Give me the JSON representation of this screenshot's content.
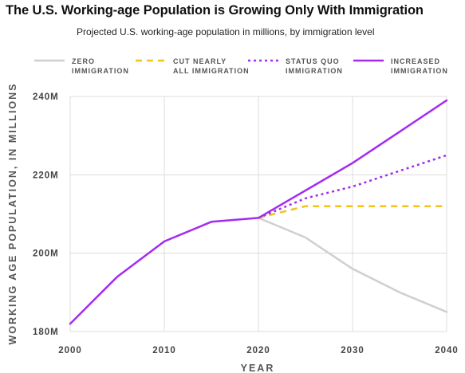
{
  "chart_data": {
    "type": "line",
    "title": "The U.S. Working-age Population is Growing Only With Immigration",
    "subtitle": "Projected U.S. working-age population in millions, by immigration level",
    "xlabel": "YEAR",
    "ylabel": "WORKING AGE POPULATION, IN MILLIONS",
    "xlim": [
      2000,
      2040
    ],
    "ylim": [
      180,
      240
    ],
    "x_ticks": [
      2000,
      2010,
      2020,
      2030,
      2040
    ],
    "x_tick_labels": [
      "2000",
      "2010",
      "2020",
      "2030",
      "2040"
    ],
    "y_ticks": [
      180,
      200,
      220,
      240
    ],
    "y_tick_labels": [
      "180M",
      "200M",
      "220M",
      "240M"
    ],
    "grid": true,
    "legend_position": "top",
    "series": [
      {
        "name": "INCREASED IMMIGRATION",
        "color": "#a32cf0",
        "style": "solid",
        "x": [
          2000,
          2005,
          2010,
          2015,
          2020,
          2025,
          2030,
          2035,
          2040
        ],
        "values": [
          182,
          194,
          203,
          208,
          209,
          216,
          223,
          231,
          239
        ]
      },
      {
        "name": "STATUS QUO IMMIGRATION",
        "color": "#a32cf0",
        "style": "dotted",
        "x": [
          2020,
          2025,
          2030,
          2035,
          2040
        ],
        "values": [
          209,
          214,
          217,
          221,
          225
        ]
      },
      {
        "name": "CUT NEARLY ALL IMMIGRATION",
        "color": "#f2c318",
        "style": "dashed",
        "x": [
          2020,
          2025,
          2030,
          2035,
          2040
        ],
        "values": [
          209,
          212,
          212,
          212,
          212
        ]
      },
      {
        "name": "ZERO IMMIGRATION",
        "color": "#cfcfcf",
        "style": "solid",
        "x": [
          2020,
          2025,
          2030,
          2035,
          2040
        ],
        "values": [
          209,
          204,
          196,
          190,
          185
        ]
      }
    ]
  },
  "legend": [
    {
      "label": "ZERO\nIMMIGRATION",
      "color": "#cfcfcf",
      "style": "solid"
    },
    {
      "label": "CUT NEARLY\nALL IMMIGRATION",
      "color": "#f2c318",
      "style": "dashed"
    },
    {
      "label": "STATUS QUO\nIMMIGRATION",
      "color": "#a32cf0",
      "style": "dotted"
    },
    {
      "label": "INCREASED\nIMMIGRATION",
      "color": "#a32cf0",
      "style": "solid"
    }
  ]
}
